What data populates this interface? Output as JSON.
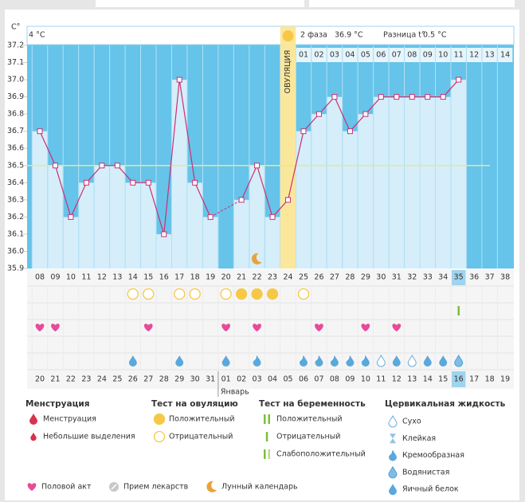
{
  "chart_data": {
    "type": "line",
    "y_axis_label": "C°",
    "header": {
      "left": "4 °C",
      "phase": "2 фаза",
      "phase_temp": "36.9 °C",
      "diff_label": "Разница t°",
      "diff": "0.5 °C"
    },
    "ovulation_label": "ОВУЛЯЦИЯ",
    "ovulation_day": "24",
    "categories": [
      "08",
      "09",
      "10",
      "11",
      "12",
      "13",
      "14",
      "15",
      "16",
      "17",
      "18",
      "19",
      "20",
      "21",
      "22",
      "23",
      "24",
      "25",
      "26",
      "27",
      "28",
      "29",
      "30",
      "31",
      "32",
      "33",
      "34",
      "35",
      "36",
      "37",
      "38"
    ],
    "values": [
      36.7,
      36.5,
      36.2,
      36.4,
      36.5,
      36.5,
      36.4,
      36.4,
      36.1,
      37.0,
      36.4,
      36.2,
      null,
      36.3,
      36.5,
      36.2,
      36.3,
      36.7,
      36.8,
      36.9,
      36.7,
      36.8,
      36.9,
      36.9,
      36.9,
      36.9,
      36.9,
      37.0,
      null,
      null,
      null
    ],
    "color": "#cc2f74",
    "background_color": "#66c3ea",
    "bar_color": "#d5eefa",
    "ovulation_color": "#fae79c",
    "ylim": [
      35.9,
      37.2
    ],
    "yticks": [
      37.2,
      37.1,
      {
        "value": 37.0,
        "label": "37.0"
      },
      36.9,
      36.8,
      36.7,
      36.6,
      36.5,
      36.4,
      36.3,
      36.2,
      36.1,
      {
        "value": 36.0,
        "label": "36.0"
      },
      35.9
    ],
    "coverline": 36.5,
    "coverline_color": "#efe680",
    "phase2_start": "25",
    "phase2_days": [
      "01",
      "02",
      "03",
      "04",
      "05",
      "06",
      "07",
      "08",
      "09",
      "10",
      "11",
      "12",
      "13",
      "14"
    ],
    "today": "35",
    "dates": [
      "20",
      "21",
      "22",
      "23",
      "24",
      "25",
      "26",
      "27",
      "28",
      "29",
      "30",
      "31",
      "01",
      "02",
      "03",
      "04",
      "05",
      "06",
      "07",
      "08",
      "09",
      "10",
      "11",
      "12",
      "13",
      "14",
      "15",
      "16",
      "17",
      "18",
      "19"
    ],
    "red_dates": [
      true,
      true,
      false,
      false,
      false,
      false,
      true,
      true,
      false,
      false,
      false,
      false,
      false,
      true,
      true,
      false,
      false,
      false,
      false,
      false,
      true,
      true,
      false,
      false,
      false,
      false,
      false,
      true,
      true,
      false,
      false
    ],
    "month": {
      "label": "Январь",
      "start_day": "20"
    },
    "moon_day": "22",
    "ovulation_tests": [
      null,
      null,
      null,
      null,
      null,
      null,
      1,
      1,
      null,
      1,
      1,
      null,
      1,
      0,
      0,
      0,
      null,
      1,
      null,
      null,
      null,
      null,
      null,
      null,
      null,
      null,
      null,
      null,
      null,
      null,
      null
    ],
    "pregnancy_tests": [
      null,
      null,
      null,
      null,
      null,
      null,
      null,
      null,
      null,
      null,
      null,
      null,
      null,
      null,
      null,
      null,
      null,
      null,
      null,
      null,
      null,
      null,
      null,
      null,
      null,
      null,
      null,
      1,
      null,
      null,
      null
    ],
    "intercourse": [
      true,
      true,
      false,
      false,
      false,
      false,
      false,
      true,
      false,
      false,
      false,
      false,
      true,
      false,
      true,
      false,
      false,
      false,
      true,
      false,
      false,
      true,
      false,
      true,
      false,
      false,
      false,
      false,
      false,
      false,
      false
    ],
    "cervical_fluid": [
      null,
      null,
      null,
      null,
      null,
      null,
      4,
      null,
      null,
      4,
      null,
      null,
      4,
      null,
      2,
      null,
      null,
      2,
      2,
      2,
      2,
      2,
      0,
      4,
      0,
      4,
      4,
      3,
      null,
      null,
      null
    ],
    "legend": {
      "groups": [
        {
          "title": "Менструация",
          "items": [
            "Менструация",
            "Небольшие выделения"
          ]
        },
        {
          "title": "Тест на овуляцию",
          "items": [
            "Положительный",
            "Отрицательный"
          ]
        },
        {
          "title": "Тест на беременность",
          "items": [
            "Положительный",
            "Отрицательный",
            "Слабоположительный"
          ]
        },
        {
          "title": "Цервикальная жидкость",
          "items": [
            "Сухо",
            "Клейкая",
            "Кремообразная",
            "Водянистая",
            "Яичный белок"
          ]
        }
      ],
      "bottom": [
        "Половой акт",
        "Прием лекарств",
        "Лунный календарь"
      ]
    }
  }
}
